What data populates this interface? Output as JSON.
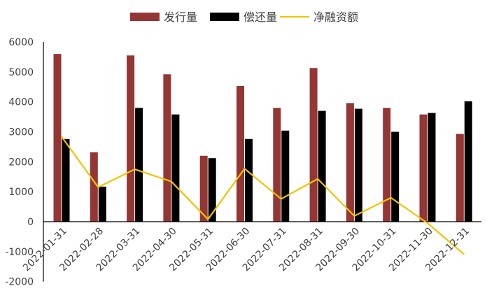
{
  "chart_data": {
    "type": "bar",
    "categories": [
      "2022-01-31",
      "2022-02-28",
      "2022-03-31",
      "2022-04-30",
      "2022-05-31",
      "2022-06-30",
      "2022-07-31",
      "2022-08-31",
      "2022-09-30",
      "2022-10-31",
      "2022-11-30",
      "2022-12-31"
    ],
    "series": [
      {
        "name": "发行量",
        "type": "bar",
        "color": "#943634",
        "values": [
          5600,
          2320,
          5550,
          4920,
          2200,
          4530,
          3800,
          5130,
          3960,
          3800,
          3580,
          2930
        ]
      },
      {
        "name": "偿还量",
        "type": "bar",
        "color": "#000000",
        "values": [
          2760,
          1170,
          3800,
          3580,
          2120,
          2760,
          3040,
          3700,
          3770,
          3000,
          3630,
          4020
        ]
      },
      {
        "name": "净融资额",
        "type": "line",
        "color": "#F2C300",
        "values": [
          2840,
          1150,
          1750,
          1340,
          80,
          1770,
          760,
          1430,
          190,
          800,
          -50,
          -1090
        ]
      }
    ],
    "title": "",
    "xlabel": "",
    "ylabel": "",
    "ylim": [
      -2000,
      6000
    ],
    "yticks": [
      6000,
      5000,
      4000,
      3000,
      2000,
      1000,
      0,
      -1000,
      -2000
    ],
    "grid": false,
    "legend_position": "top-center"
  }
}
